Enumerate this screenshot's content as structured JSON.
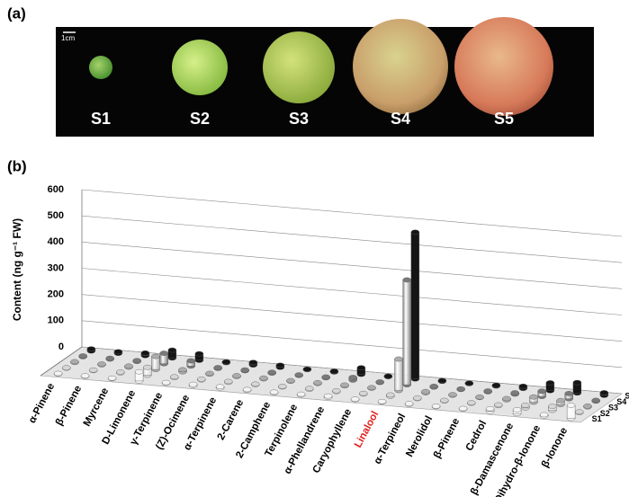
{
  "panels": {
    "a": "(a)",
    "b": "(b)"
  },
  "photo": {
    "scale_label": "1cm",
    "labels": [
      "S1",
      "S2",
      "S3",
      "S4",
      "S5"
    ]
  },
  "chart_data": {
    "type": "bar3d",
    "y_label": "Content (ng g⁻¹ FW)",
    "categories": [
      "α-Pinene",
      "β-Pinene",
      "Myrcene",
      "D-Limonene",
      "γ-Terpinene",
      "(Z)-Ocimene",
      "α-Terpinene",
      "2-Carene",
      "2-Camphene",
      "Terpinolene",
      "α-Phellandrene",
      "Caryophyllene",
      "Linalool",
      "α-Terpineol",
      "Nerolidol",
      "β-Pinene",
      "Cedrol",
      "β-Damascenone",
      "Dihydro-β-Ionone",
      "β-Ionone"
    ],
    "label_colors": [
      "#000",
      "#000",
      "#000",
      "#000",
      "#000",
      "#000",
      "#000",
      "#000",
      "#000",
      "#000",
      "#000",
      "#000",
      "#e0211d",
      "#000",
      "#000",
      "#000",
      "#000",
      "#000",
      "#000",
      "#000"
    ],
    "series": [
      {
        "name": "S1",
        "color": "#f4f4f4",
        "values": [
          2,
          2,
          2,
          35,
          3,
          5,
          5,
          3,
          2,
          3,
          5,
          2,
          2,
          3,
          2,
          2,
          10,
          15,
          5,
          50
        ]
      },
      {
        "name": "S2",
        "color": "#d6d6d6",
        "values": [
          2,
          2,
          3,
          30,
          3,
          3,
          3,
          2,
          2,
          3,
          3,
          2,
          5,
          2,
          2,
          2,
          3,
          10,
          15,
          3
        ]
      },
      {
        "name": "S3",
        "color": "#acacac",
        "values": [
          3,
          3,
          4,
          50,
          8,
          3,
          3,
          3,
          2,
          3,
          3,
          2,
          120,
          5,
          2,
          2,
          5,
          20,
          15,
          3
        ]
      },
      {
        "name": "S4",
        "color": "#7a7a7a",
        "values": [
          3,
          3,
          3,
          40,
          20,
          3,
          3,
          3,
          2,
          3,
          10,
          2,
          400,
          3,
          2,
          3,
          5,
          20,
          20,
          3
        ]
      },
      {
        "name": "S5",
        "color": "#151515",
        "values": [
          8,
          6,
          10,
          30,
          25,
          3,
          10,
          8,
          2,
          3,
          25,
          2,
          560,
          3,
          2,
          3,
          8,
          30,
          40,
          10
        ]
      }
    ],
    "ylim": [
      0,
      600
    ],
    "yticks": [
      0,
      100,
      200,
      300,
      400,
      500,
      600
    ],
    "grid": true
  }
}
